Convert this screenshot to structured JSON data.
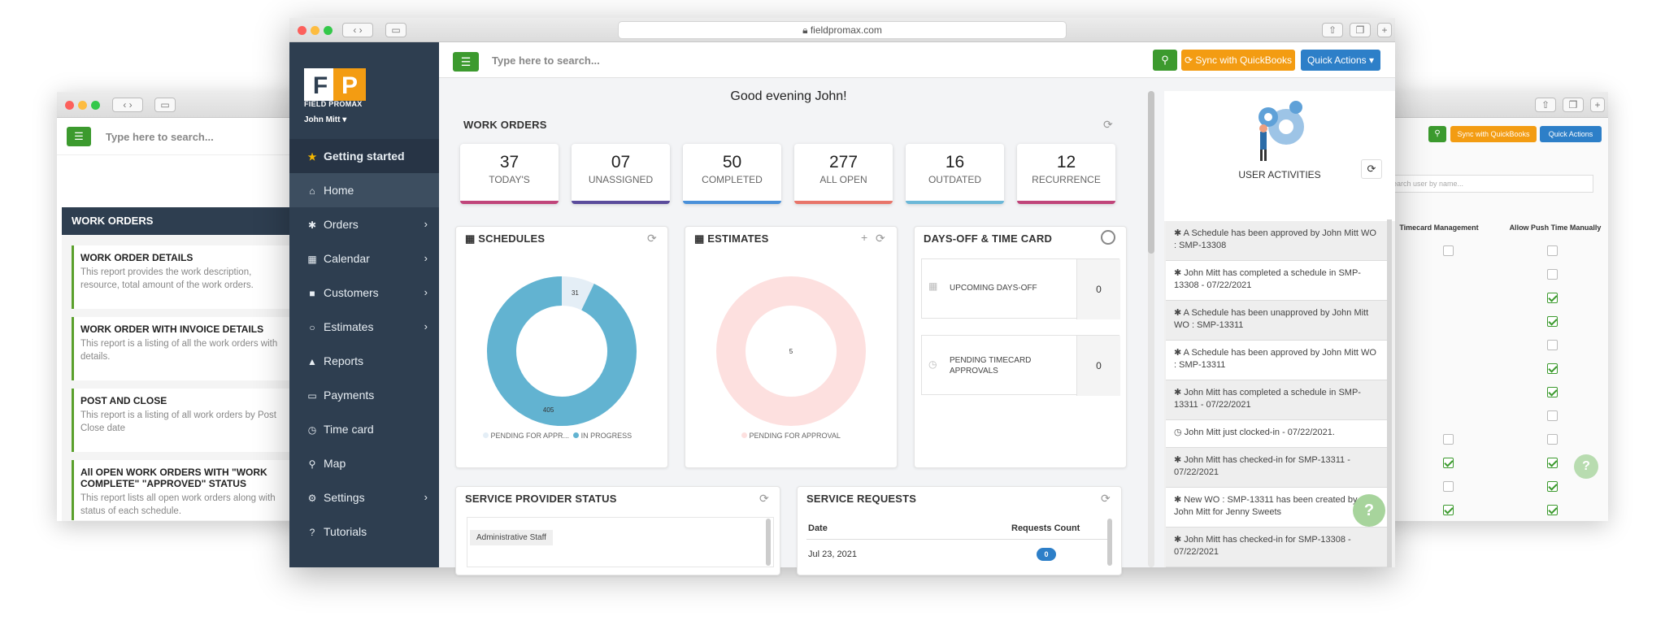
{
  "left_window": {
    "search_placeholder": "Type here to search...",
    "panel_title": "WORK ORDERS",
    "reports": [
      {
        "title": "WORK ORDER DETAILS",
        "desc": "This report provides the work description, resource, total amount of the work orders."
      },
      {
        "title": "WORK ORDER WITH INVOICE DETAILS",
        "desc": "This report is a listing of all the work orders with details."
      },
      {
        "title": "POST AND CLOSE",
        "desc": "This report is a listing of all work orders by Post Close date"
      },
      {
        "title": "All OPEN WORK ORDERS WITH \"WORK COMPLETE\" \"APPROVED\" STATUS",
        "desc": "This report lists all open work orders along with status of each schedule."
      }
    ]
  },
  "browser": {
    "url": "fieldpromax.com"
  },
  "topbar": {
    "search_placeholder": "Type here to search...",
    "sync_label": "Sync with QuickBooks",
    "quick_actions_label": "Quick Actions",
    "menu_icon": "menu-icon",
    "search_icon": "search-icon"
  },
  "sidebar": {
    "logo_text": "FP",
    "brand": "FIELD PROMAX",
    "user": "John Mitt",
    "items": [
      {
        "label": "Getting started",
        "icon": "★",
        "chevron": false
      },
      {
        "label": "Home",
        "icon": "⌂",
        "chevron": false
      },
      {
        "label": "Orders",
        "icon": "✱",
        "chevron": true
      },
      {
        "label": "Calendar",
        "icon": "▦",
        "chevron": true
      },
      {
        "label": "Customers",
        "icon": "■",
        "chevron": true
      },
      {
        "label": "Estimates",
        "icon": "○",
        "chevron": true
      },
      {
        "label": "Reports",
        "icon": "▲",
        "chevron": false
      },
      {
        "label": "Payments",
        "icon": "▭",
        "chevron": false
      },
      {
        "label": "Time card",
        "icon": "◷",
        "chevron": false
      },
      {
        "label": "Map",
        "icon": "⚲",
        "chevron": false
      },
      {
        "label": "Settings",
        "icon": "⚙",
        "chevron": true
      },
      {
        "label": "Tutorials",
        "icon": "?",
        "chevron": false
      }
    ]
  },
  "main": {
    "greeting": "Good evening John!",
    "work_orders_title": "WORK ORDERS",
    "kpis": [
      {
        "value": "37",
        "label": "TODAY'S",
        "color": "#c0457a"
      },
      {
        "value": "07",
        "label": "UNASSIGNED",
        "color": "#5b4c9c"
      },
      {
        "value": "50",
        "label": "COMPLETED",
        "color": "#4a90d9"
      },
      {
        "value": "277",
        "label": "ALL OPEN",
        "color": "#e8756a"
      },
      {
        "value": "16",
        "label": "OUTDATED",
        "color": "#6cb8d8"
      },
      {
        "value": "12",
        "label": "RECURRENCE",
        "color": "#c0457a"
      }
    ],
    "schedules": {
      "title": "SCHEDULES",
      "legend": [
        "PENDING FOR APPR...",
        "IN PROGRESS"
      ],
      "values": [
        31,
        405
      ],
      "colors": [
        "#e4eef6",
        "#62b3d1"
      ]
    },
    "estimates": {
      "title": "ESTIMATES",
      "legend": [
        "PENDING FOR APPROVAL"
      ],
      "values": [
        5
      ],
      "colors": [
        "#fde0df"
      ]
    },
    "daysoff": {
      "title": "DAYS-OFF & TIME CARD",
      "rows": [
        {
          "label": "UPCOMING DAYS-OFF",
          "value": "0"
        },
        {
          "label": "PENDING TIMECARD APPROVALS",
          "value": "0"
        }
      ]
    },
    "provider": {
      "title": "SERVICE PROVIDER STATUS",
      "tag": "Administrative Staff"
    },
    "requests": {
      "title": "SERVICE REQUESTS",
      "col_date": "Date",
      "col_count": "Requests Count",
      "rows": [
        {
          "date": "Jul 23, 2021",
          "count": "0"
        }
      ]
    }
  },
  "activities": {
    "title": "USER ACTIVITIES",
    "items": [
      "A Schedule has been approved by John Mitt WO : SMP-13308",
      "John Mitt has completed a schedule in SMP-13308 - 07/22/2021",
      "A Schedule has been unapproved by John Mitt WO : SMP-13311",
      "A Schedule has been approved by John Mitt WO : SMP-13311",
      "John Mitt has completed a schedule in SMP-13311 - 07/22/2021",
      "John Mitt just clocked-in - 07/22/2021.",
      "John Mitt has checked-in for SMP-13311 - 07/22/2021",
      "New WO : SMP-13311 has been created by John Mitt for Jenny Sweets",
      "John Mitt has checked-in for SMP-13308 - 07/22/2021"
    ]
  },
  "right_window": {
    "sync_label": "Sync with QuickBooks",
    "quick_actions_label": "Quick Actions",
    "search_placeholder": "Search user by name...",
    "col1": "Timecard Management",
    "col2": "Allow Push Time Manually"
  },
  "help_label": "?"
}
